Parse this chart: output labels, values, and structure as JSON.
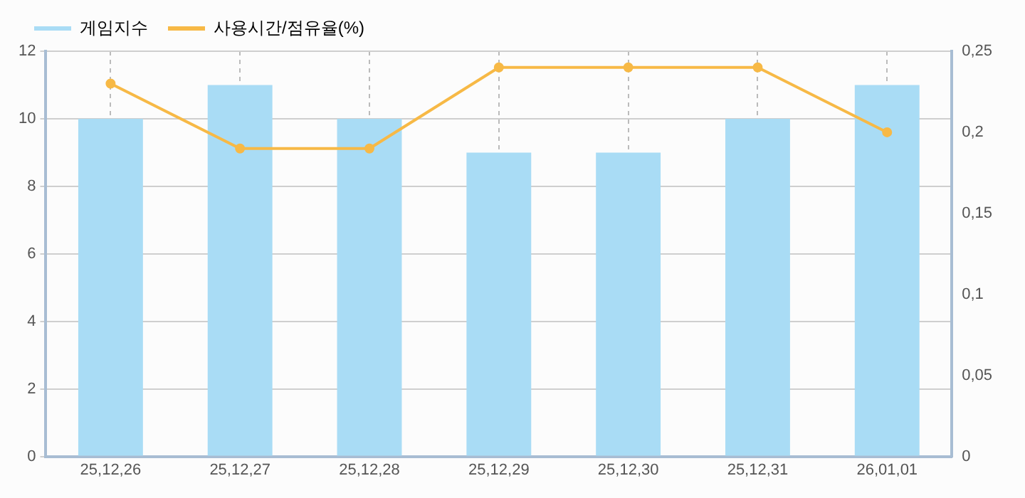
{
  "chart_data": {
    "type": "bar",
    "categories": [
      "25,12,26",
      "25,12,27",
      "25,12,28",
      "25,12,29",
      "25,12,30",
      "25,12,31",
      "26,01,01"
    ],
    "series": [
      {
        "name": "게임지수",
        "color": "#a9dcf5",
        "values": [
          10,
          11,
          10,
          9,
          9,
          10,
          11
        ]
      },
      {
        "name": "사용시간/점유율(%)",
        "type": "line",
        "axis": "y2",
        "color": "#f7b946",
        "values": [
          0.23,
          0.19,
          0.19,
          0.24,
          0.24,
          0.24,
          0.2
        ]
      }
    ],
    "ylim": [
      0,
      12
    ],
    "yticks": [
      0,
      2,
      4,
      6,
      8,
      10,
      12
    ],
    "y2lim": [
      0,
      0.25
    ],
    "y2ticks": [
      {
        "value": 0,
        "label": "0"
      },
      {
        "value": 0.05,
        "label": "0,05"
      },
      {
        "value": 0.1,
        "label": "0,1"
      },
      {
        "value": 0.15,
        "label": "0,15"
      },
      {
        "value": 0.2,
        "label": "0,2"
      },
      {
        "value": 0.25,
        "label": "0,25"
      }
    ],
    "grid": true,
    "legend": "top left",
    "marker": "circle",
    "line_style": "solid"
  }
}
